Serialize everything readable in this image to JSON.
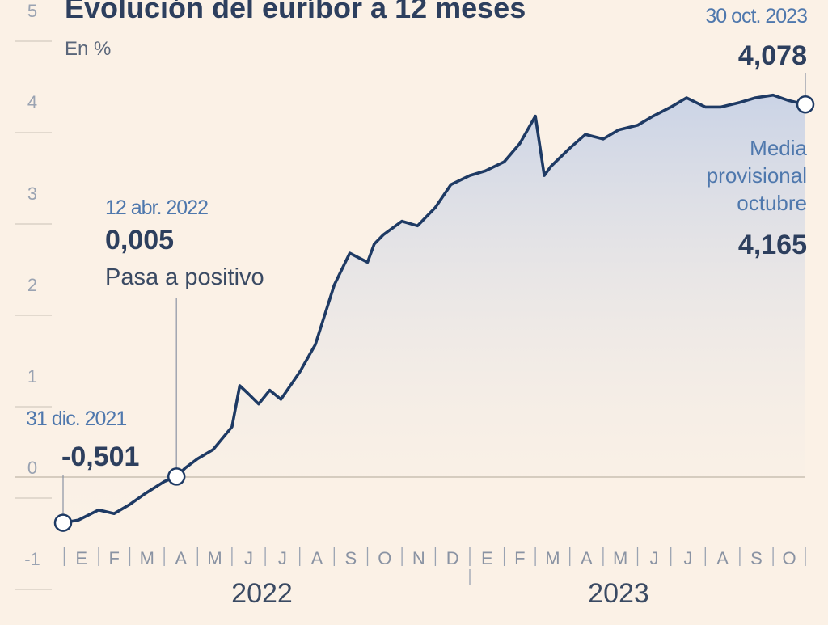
{
  "chart_data": {
    "type": "area",
    "title": "Evolución del euríbor a 12 meses",
    "subtitle": "En %",
    "ylim": [
      -1,
      5
    ],
    "y_ticks": [
      "-1",
      "0",
      "1",
      "2",
      "3",
      "4",
      "5"
    ],
    "month_labels": [
      "E",
      "F",
      "M",
      "A",
      "M",
      "J",
      "J",
      "A",
      "S",
      "O",
      "N",
      "D",
      "E",
      "F",
      "M",
      "A",
      "M",
      "J",
      "J",
      "A",
      "S",
      "O"
    ],
    "year_labels": [
      "2022",
      "2023"
    ],
    "x_start": "2021-12-31",
    "series": [
      {
        "name": "",
        "x": [
          "2021-12-31",
          "2022-01-14",
          "2022-02-01",
          "2022-02-15",
          "2022-03-01",
          "2022-03-15",
          "2022-04-01",
          "2022-04-12",
          "2022-04-20",
          "2022-05-01",
          "2022-05-15",
          "2022-06-01",
          "2022-06-08",
          "2022-06-15",
          "2022-06-25",
          "2022-07-05",
          "2022-07-15",
          "2022-08-01",
          "2022-08-15",
          "2022-09-01",
          "2022-09-15",
          "2022-10-01",
          "2022-10-07",
          "2022-10-15",
          "2022-11-01",
          "2022-11-15",
          "2022-12-01",
          "2022-12-15",
          "2023-01-01",
          "2023-01-15",
          "2023-02-01",
          "2023-02-15",
          "2023-03-01",
          "2023-03-09",
          "2023-03-15",
          "2023-04-01",
          "2023-04-15",
          "2023-05-01",
          "2023-05-15",
          "2023-06-01",
          "2023-06-15",
          "2023-07-01",
          "2023-07-15",
          "2023-08-01",
          "2023-08-15",
          "2023-09-01",
          "2023-09-15",
          "2023-10-01",
          "2023-10-15",
          "2023-10-30"
        ],
        "values": [
          -0.501,
          -0.47,
          -0.36,
          -0.4,
          -0.3,
          -0.18,
          -0.05,
          0.005,
          0.1,
          0.2,
          0.3,
          0.55,
          1.0,
          0.92,
          0.8,
          0.95,
          0.85,
          1.15,
          1.45,
          2.1,
          2.45,
          2.35,
          2.55,
          2.65,
          2.8,
          2.75,
          2.95,
          3.2,
          3.3,
          3.35,
          3.45,
          3.65,
          3.95,
          3.3,
          3.4,
          3.6,
          3.75,
          3.7,
          3.8,
          3.85,
          3.95,
          4.05,
          4.15,
          4.05,
          4.05,
          4.1,
          4.15,
          4.18,
          4.12,
          4.078
        ]
      }
    ],
    "annotations": [
      {
        "date": "31 dic. 2021",
        "value": "-0,501"
      },
      {
        "date": "12 abr. 2022",
        "value": "0,005",
        "note": "Pasa a positivo"
      },
      {
        "date": "30 oct. 2023",
        "value": "4,078"
      },
      {
        "label": "Media provisional octubre",
        "label_lines": [
          "Media",
          "provisional",
          "octubre"
        ],
        "value": "4,165"
      }
    ],
    "colors": {
      "line": "#1e3a64",
      "area_top": "#c8d2e6",
      "background": "#fbf1e6",
      "text": "#2d3f5e",
      "accent": "#4f78ad",
      "grid": "#d9d1c6"
    }
  }
}
